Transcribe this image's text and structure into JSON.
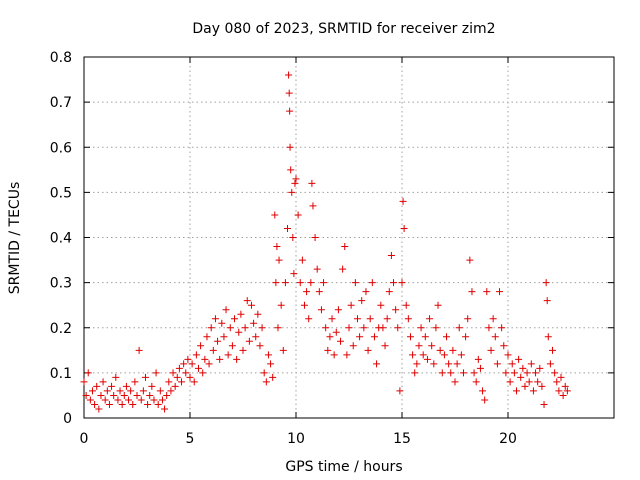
{
  "chart_data": {
    "type": "scatter",
    "title": "Day 080 of 2023, SRMTID for receiver zim2",
    "xlabel": "GPS time / hours",
    "ylabel": "SRMTID / TECUs",
    "xlim": [
      0,
      25
    ],
    "ylim": [
      0,
      0.8
    ],
    "xticks": [
      0,
      5,
      10,
      15,
      20
    ],
    "xtick_labels": [
      "0",
      "5",
      "10",
      "15",
      "20"
    ],
    "yticks": [
      0,
      0.1,
      0.2,
      0.3,
      0.4,
      0.5,
      0.6,
      0.7,
      0.8
    ],
    "ytick_labels": [
      "0",
      "0.1",
      "0.2",
      "0.3",
      "0.4",
      "0.5",
      "0.6",
      "0.7",
      "0.8"
    ],
    "grid": true,
    "marker": "+",
    "color": "#e00000",
    "series": [
      {
        "name": "SRMTID",
        "points": [
          [
            0.0,
            0.08
          ],
          [
            0.1,
            0.05
          ],
          [
            0.2,
            0.1
          ],
          [
            0.3,
            0.04
          ],
          [
            0.4,
            0.06
          ],
          [
            0.5,
            0.03
          ],
          [
            0.6,
            0.07
          ],
          [
            0.7,
            0.02
          ],
          [
            0.8,
            0.05
          ],
          [
            0.9,
            0.08
          ],
          [
            1.0,
            0.04
          ],
          [
            1.1,
            0.06
          ],
          [
            1.2,
            0.03
          ],
          [
            1.3,
            0.07
          ],
          [
            1.4,
            0.05
          ],
          [
            1.5,
            0.09
          ],
          [
            1.6,
            0.04
          ],
          [
            1.7,
            0.06
          ],
          [
            1.8,
            0.03
          ],
          [
            1.9,
            0.05
          ],
          [
            2.0,
            0.07
          ],
          [
            2.1,
            0.04
          ],
          [
            2.2,
            0.06
          ],
          [
            2.3,
            0.03
          ],
          [
            2.4,
            0.08
          ],
          [
            2.5,
            0.05
          ],
          [
            2.6,
            0.15
          ],
          [
            2.7,
            0.04
          ],
          [
            2.8,
            0.06
          ],
          [
            2.9,
            0.09
          ],
          [
            3.0,
            0.03
          ],
          [
            3.1,
            0.05
          ],
          [
            3.2,
            0.07
          ],
          [
            3.3,
            0.04
          ],
          [
            3.4,
            0.1
          ],
          [
            3.5,
            0.03
          ],
          [
            3.6,
            0.06
          ],
          [
            3.7,
            0.04
          ],
          [
            3.8,
            0.02
          ],
          [
            3.9,
            0.05
          ],
          [
            4.0,
            0.08
          ],
          [
            4.1,
            0.06
          ],
          [
            4.2,
            0.1
          ],
          [
            4.3,
            0.07
          ],
          [
            4.4,
            0.09
          ],
          [
            4.5,
            0.11
          ],
          [
            4.6,
            0.08
          ],
          [
            4.7,
            0.12
          ],
          [
            4.8,
            0.1
          ],
          [
            4.9,
            0.13
          ],
          [
            5.0,
            0.09
          ],
          [
            5.1,
            0.12
          ],
          [
            5.2,
            0.08
          ],
          [
            5.3,
            0.14
          ],
          [
            5.4,
            0.11
          ],
          [
            5.5,
            0.16
          ],
          [
            5.6,
            0.1
          ],
          [
            5.7,
            0.13
          ],
          [
            5.8,
            0.18
          ],
          [
            5.9,
            0.12
          ],
          [
            6.0,
            0.2
          ],
          [
            6.1,
            0.15
          ],
          [
            6.2,
            0.22
          ],
          [
            6.3,
            0.17
          ],
          [
            6.4,
            0.13
          ],
          [
            6.5,
            0.21
          ],
          [
            6.6,
            0.18
          ],
          [
            6.7,
            0.24
          ],
          [
            6.8,
            0.14
          ],
          [
            6.9,
            0.2
          ],
          [
            7.0,
            0.16
          ],
          [
            7.1,
            0.22
          ],
          [
            7.2,
            0.13
          ],
          [
            7.3,
            0.19
          ],
          [
            7.4,
            0.23
          ],
          [
            7.5,
            0.15
          ],
          [
            7.6,
            0.2
          ],
          [
            7.7,
            0.26
          ],
          [
            7.8,
            0.17
          ],
          [
            7.9,
            0.25
          ],
          [
            8.0,
            0.21
          ],
          [
            8.1,
            0.18
          ],
          [
            8.2,
            0.23
          ],
          [
            8.3,
            0.16
          ],
          [
            8.4,
            0.2
          ],
          [
            8.5,
            0.1
          ],
          [
            8.6,
            0.08
          ],
          [
            8.7,
            0.14
          ],
          [
            8.8,
            0.12
          ],
          [
            8.9,
            0.09
          ],
          [
            9.0,
            0.45
          ],
          [
            9.05,
            0.3
          ],
          [
            9.1,
            0.38
          ],
          [
            9.15,
            0.2
          ],
          [
            9.2,
            0.35
          ],
          [
            9.3,
            0.25
          ],
          [
            9.4,
            0.15
          ],
          [
            9.5,
            0.3
          ],
          [
            9.6,
            0.42
          ],
          [
            9.65,
            0.76
          ],
          [
            9.68,
            0.72
          ],
          [
            9.7,
            0.68
          ],
          [
            9.72,
            0.6
          ],
          [
            9.75,
            0.55
          ],
          [
            9.8,
            0.5
          ],
          [
            9.85,
            0.4
          ],
          [
            9.9,
            0.32
          ],
          [
            9.95,
            0.52
          ],
          [
            10.0,
            0.53
          ],
          [
            10.1,
            0.45
          ],
          [
            10.2,
            0.3
          ],
          [
            10.3,
            0.35
          ],
          [
            10.4,
            0.25
          ],
          [
            10.5,
            0.28
          ],
          [
            10.6,
            0.22
          ],
          [
            10.7,
            0.3
          ],
          [
            10.75,
            0.52
          ],
          [
            10.8,
            0.47
          ],
          [
            10.9,
            0.4
          ],
          [
            11.0,
            0.33
          ],
          [
            11.1,
            0.28
          ],
          [
            11.2,
            0.24
          ],
          [
            11.3,
            0.3
          ],
          [
            11.4,
            0.2
          ],
          [
            11.5,
            0.15
          ],
          [
            11.6,
            0.18
          ],
          [
            11.7,
            0.22
          ],
          [
            11.8,
            0.14
          ],
          [
            11.9,
            0.19
          ],
          [
            12.0,
            0.24
          ],
          [
            12.1,
            0.17
          ],
          [
            12.2,
            0.33
          ],
          [
            12.3,
            0.38
          ],
          [
            12.4,
            0.14
          ],
          [
            12.5,
            0.2
          ],
          [
            12.6,
            0.25
          ],
          [
            12.7,
            0.16
          ],
          [
            12.8,
            0.3
          ],
          [
            12.9,
            0.22
          ],
          [
            13.0,
            0.18
          ],
          [
            13.1,
            0.26
          ],
          [
            13.2,
            0.2
          ],
          [
            13.3,
            0.28
          ],
          [
            13.4,
            0.15
          ],
          [
            13.5,
            0.22
          ],
          [
            13.6,
            0.3
          ],
          [
            13.7,
            0.18
          ],
          [
            13.8,
            0.12
          ],
          [
            13.9,
            0.2
          ],
          [
            14.0,
            0.25
          ],
          [
            14.1,
            0.2
          ],
          [
            14.2,
            0.16
          ],
          [
            14.3,
            0.22
          ],
          [
            14.4,
            0.28
          ],
          [
            14.5,
            0.36
          ],
          [
            14.6,
            0.3
          ],
          [
            14.7,
            0.24
          ],
          [
            14.8,
            0.2
          ],
          [
            14.9,
            0.06
          ],
          [
            15.0,
            0.3
          ],
          [
            15.05,
            0.48
          ],
          [
            15.1,
            0.42
          ],
          [
            15.2,
            0.25
          ],
          [
            15.3,
            0.22
          ],
          [
            15.4,
            0.18
          ],
          [
            15.5,
            0.14
          ],
          [
            15.6,
            0.1
          ],
          [
            15.7,
            0.12
          ],
          [
            15.8,
            0.16
          ],
          [
            15.9,
            0.2
          ],
          [
            16.0,
            0.14
          ],
          [
            16.1,
            0.18
          ],
          [
            16.2,
            0.13
          ],
          [
            16.3,
            0.22
          ],
          [
            16.4,
            0.16
          ],
          [
            16.5,
            0.12
          ],
          [
            16.6,
            0.2
          ],
          [
            16.7,
            0.25
          ],
          [
            16.8,
            0.15
          ],
          [
            16.9,
            0.1
          ],
          [
            17.0,
            0.14
          ],
          [
            17.1,
            0.18
          ],
          [
            17.2,
            0.12
          ],
          [
            17.3,
            0.1
          ],
          [
            17.4,
            0.15
          ],
          [
            17.5,
            0.08
          ],
          [
            17.6,
            0.12
          ],
          [
            17.7,
            0.2
          ],
          [
            17.8,
            0.14
          ],
          [
            17.9,
            0.1
          ],
          [
            18.0,
            0.18
          ],
          [
            18.1,
            0.22
          ],
          [
            18.2,
            0.35
          ],
          [
            18.3,
            0.28
          ],
          [
            18.4,
            0.1
          ],
          [
            18.5,
            0.08
          ],
          [
            18.6,
            0.13
          ],
          [
            18.7,
            0.11
          ],
          [
            18.8,
            0.06
          ],
          [
            18.9,
            0.04
          ],
          [
            19.0,
            0.28
          ],
          [
            19.1,
            0.2
          ],
          [
            19.2,
            0.15
          ],
          [
            19.3,
            0.22
          ],
          [
            19.4,
            0.18
          ],
          [
            19.5,
            0.12
          ],
          [
            19.6,
            0.28
          ],
          [
            19.7,
            0.2
          ],
          [
            19.8,
            0.16
          ],
          [
            19.9,
            0.1
          ],
          [
            20.0,
            0.14
          ],
          [
            20.1,
            0.08
          ],
          [
            20.2,
            0.12
          ],
          [
            20.3,
            0.1
          ],
          [
            20.4,
            0.06
          ],
          [
            20.5,
            0.13
          ],
          [
            20.6,
            0.09
          ],
          [
            20.7,
            0.11
          ],
          [
            20.8,
            0.07
          ],
          [
            20.9,
            0.1
          ],
          [
            21.0,
            0.08
          ],
          [
            21.1,
            0.12
          ],
          [
            21.2,
            0.06
          ],
          [
            21.3,
            0.1
          ],
          [
            21.4,
            0.08
          ],
          [
            21.5,
            0.11
          ],
          [
            21.6,
            0.07
          ],
          [
            21.7,
            0.03
          ],
          [
            21.8,
            0.3
          ],
          [
            21.85,
            0.26
          ],
          [
            21.9,
            0.18
          ],
          [
            22.0,
            0.12
          ],
          [
            22.1,
            0.15
          ],
          [
            22.2,
            0.1
          ],
          [
            22.3,
            0.08
          ],
          [
            22.4,
            0.06
          ],
          [
            22.5,
            0.09
          ],
          [
            22.6,
            0.05
          ],
          [
            22.7,
            0.07
          ],
          [
            22.8,
            0.06
          ]
        ]
      }
    ]
  }
}
